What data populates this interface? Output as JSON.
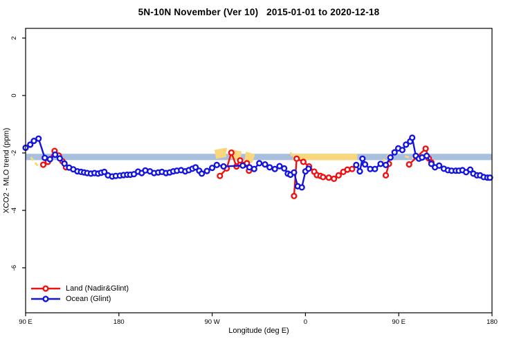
{
  "title": "5N-10N November (Ver 10)   2015-01-01 to 2020-12-18",
  "colors": {
    "land": "#EE1111",
    "ocean": "#1414DF",
    "band_blue": "#A9BFDE",
    "band_orange": "#FAD77C",
    "axis": "#000000",
    "background": "#FFFFFF"
  },
  "legend": {
    "items": [
      {
        "label": "Land (Nadir&Glint)",
        "series": "land"
      },
      {
        "label": "Ocean (Glint)",
        "series": "ocean"
      }
    ]
  },
  "chart_data": {
    "type": "line",
    "title": "5N-10N November (Ver 10)   2015-01-01 to 2020-12-18",
    "xlabel": "Longitude (deg E)",
    "ylabel": "XCO2 - MLO trend (ppm)",
    "grid": false,
    "legend_position": "bottom-left",
    "xlim": [
      90,
      540
    ],
    "ylim": [
      -7.6,
      2.35
    ],
    "x_axis_note": "longitude wraps eastward: 90E -> 180 -> 90W -> 0 -> 90E -> 180",
    "x_ticks": [
      {
        "pos": 90,
        "label": "90 E"
      },
      {
        "pos": 180,
        "label": "180"
      },
      {
        "pos": 270,
        "label": "90 W"
      },
      {
        "pos": 360,
        "label": "0"
      },
      {
        "pos": 450,
        "label": "90 E"
      },
      {
        "pos": 540,
        "label": "180"
      }
    ],
    "y_ticks": [
      {
        "pos": 2,
        "label": "2"
      },
      {
        "pos": 0,
        "label": "0"
      },
      {
        "pos": -2,
        "label": "-2"
      },
      {
        "pos": -4,
        "label": "-4"
      },
      {
        "pos": -6,
        "label": "-6"
      }
    ],
    "bands": [
      {
        "name": "reference-band-blue",
        "color_key": "band_blue",
        "x": [
          90,
          540
        ],
        "y": [
          -2.03,
          -2.25
        ]
      },
      {
        "name": "reference-band-orange",
        "color_key": "band_orange",
        "x": [
          348,
          410
        ],
        "y": [
          -2.03,
          -2.25
        ]
      }
    ],
    "dashed_overlays": [
      {
        "name": "orange-dash-1",
        "w": 3,
        "dash": "6 4",
        "points": [
          [
            95,
            -2.15
          ],
          [
            100,
            -2.38
          ],
          [
            104,
            -2.52
          ]
        ]
      },
      {
        "name": "orange-dash-2",
        "w": 13,
        "dash": "16 6",
        "points": [
          [
            273,
            -2.05
          ],
          [
            283,
            -1.98
          ],
          [
            294,
            -2.08
          ],
          [
            303,
            -2.12
          ],
          [
            310,
            -2.2
          ]
        ]
      },
      {
        "name": "orange-dash-3",
        "w": 3,
        "dash": "6 4",
        "points": [
          [
            345.5,
            -1.98
          ],
          [
            349,
            -2.25
          ]
        ]
      },
      {
        "name": "orange-dash-4",
        "w": 3,
        "dash": "6 4",
        "points": [
          [
            434,
            -2.32
          ],
          [
            440,
            -2.08
          ],
          [
            446,
            -1.86
          ]
        ]
      },
      {
        "name": "orange-dash-5",
        "w": 3,
        "dash": "6 4",
        "points": [
          [
            456,
            -2.12
          ],
          [
            464,
            -2.18
          ]
        ]
      },
      {
        "name": "orange-dash-6",
        "w": 3,
        "dash": "6 4",
        "points": [
          [
            470,
            -2.12
          ],
          [
            479,
            -2.2
          ]
        ]
      }
    ],
    "series": [
      {
        "name": "Land (Nadir&Glint)",
        "color_key": "land",
        "marker": "open-circle",
        "segments": [
          [
            [
              107,
              -2.41
            ],
            [
              111.5,
              -2.31
            ],
            [
              118,
              -1.93
            ],
            [
              122,
              -2.09
            ],
            [
              125.5,
              -2.29
            ],
            [
              129,
              -2.5
            ]
          ],
          [
            [
              277.5,
              -2.8
            ],
            [
              284,
              -2.54
            ],
            [
              288.5,
              -1.99
            ],
            [
              293.5,
              -2.47
            ],
            [
              297,
              -2.26
            ],
            [
              300.5,
              -2.42
            ],
            [
              303.5,
              -2.36
            ],
            [
              305.5,
              -2.62
            ]
          ],
          [
            [
              349,
              -3.5
            ],
            [
              351.5,
              -2.2
            ],
            [
              358,
              -2.31
            ],
            [
              363.5,
              -2.47
            ],
            [
              368.5,
              -2.65
            ],
            [
              371,
              -2.77
            ],
            [
              374.5,
              -2.8
            ],
            [
              377,
              -2.84
            ],
            [
              382.5,
              -2.86
            ],
            [
              387.5,
              -2.9
            ],
            [
              392,
              -2.78
            ],
            [
              396.5,
              -2.66
            ],
            [
              400.5,
              -2.58
            ],
            [
              405,
              -2.56
            ]
          ],
          [
            [
              437.5,
              -2.78
            ],
            [
              440.5,
              -2.38
            ]
          ],
          [
            [
              460,
              -2.4
            ],
            [
              476,
              -1.85
            ],
            [
              479,
              -2.19
            ],
            [
              481.5,
              -2.33
            ]
          ]
        ]
      },
      {
        "name": "Ocean (Glint)",
        "color_key": "ocean",
        "marker": "open-circle",
        "segments": [
          [
            [
              90,
              -1.82
            ],
            [
              94.5,
              -1.71
            ],
            [
              98,
              -1.58
            ],
            [
              102.5,
              -1.5
            ],
            [
              108.5,
              -2.17
            ],
            [
              113.5,
              -2.22
            ],
            [
              118.5,
              -2.06
            ],
            [
              123,
              -2.19
            ],
            [
              127.5,
              -2.37
            ],
            [
              132,
              -2.51
            ],
            [
              136,
              -2.57
            ],
            [
              140,
              -2.64
            ],
            [
              143.5,
              -2.66
            ],
            [
              146.5,
              -2.68
            ],
            [
              149.5,
              -2.7
            ],
            [
              153,
              -2.72
            ],
            [
              156.5,
              -2.7
            ],
            [
              160,
              -2.72
            ],
            [
              163,
              -2.69
            ],
            [
              166,
              -2.66
            ],
            [
              169.5,
              -2.78
            ],
            [
              173.5,
              -2.82
            ],
            [
              177,
              -2.8
            ],
            [
              181,
              -2.79
            ],
            [
              184.5,
              -2.77
            ],
            [
              188,
              -2.76
            ],
            [
              191,
              -2.76
            ],
            [
              194.5,
              -2.74
            ],
            [
              198.5,
              -2.65
            ],
            [
              202,
              -2.7
            ],
            [
              205.5,
              -2.61
            ],
            [
              210,
              -2.64
            ],
            [
              214,
              -2.7
            ],
            [
              218,
              -2.68
            ],
            [
              221.5,
              -2.66
            ],
            [
              225.5,
              -2.7
            ],
            [
              229,
              -2.68
            ],
            [
              232.5,
              -2.64
            ],
            [
              236,
              -2.62
            ],
            [
              240,
              -2.6
            ],
            [
              244,
              -2.64
            ],
            [
              247.5,
              -2.6
            ],
            [
              251,
              -2.55
            ],
            [
              254,
              -2.5
            ],
            [
              257.5,
              -2.62
            ],
            [
              260,
              -2.72
            ],
            [
              265,
              -2.63
            ],
            [
              270,
              -2.52
            ],
            [
              274.5,
              -2.42
            ],
            [
              281,
              -2.47
            ],
            [
              299.5,
              -2.44
            ],
            [
              306,
              -2.5
            ],
            [
              310.5,
              -2.56
            ],
            [
              315.5,
              -2.36
            ],
            [
              321,
              -2.4
            ],
            [
              325.5,
              -2.5
            ],
            [
              330.5,
              -2.56
            ],
            [
              335,
              -2.46
            ],
            [
              339.5,
              -2.54
            ],
            [
              343,
              -2.72
            ],
            [
              345.5,
              -2.76
            ],
            [
              349,
              -2.68
            ],
            [
              352.5,
              -3.16
            ],
            [
              356.5,
              -3.2
            ],
            [
              360,
              -2.64
            ],
            [
              363,
              -2.55
            ]
          ],
          [
            [
              409,
              -2.42
            ],
            [
              412.5,
              -2.64
            ],
            [
              415,
              -2.2
            ],
            [
              417.5,
              -2.4
            ],
            [
              422.5,
              -2.56
            ],
            [
              427,
              -2.56
            ],
            [
              432.5,
              -2.38
            ],
            [
              437.5,
              -2.42
            ],
            [
              442,
              -2.16
            ],
            [
              446,
              -1.98
            ],
            [
              449.5,
              -1.84
            ],
            [
              453.5,
              -1.9
            ],
            [
              457,
              -1.71
            ],
            [
              461,
              -1.6
            ],
            [
              463,
              -1.47
            ],
            [
              466.5,
              -2.1
            ],
            [
              469.5,
              -2.2
            ],
            [
              472.5,
              -2.16
            ],
            [
              477,
              -2.1
            ],
            [
              481.5,
              -2.38
            ],
            [
              485,
              -2.5
            ],
            [
              489,
              -2.44
            ],
            [
              493.5,
              -2.55
            ],
            [
              497.5,
              -2.6
            ],
            [
              501,
              -2.62
            ],
            [
              505,
              -2.62
            ],
            [
              508,
              -2.62
            ],
            [
              511.5,
              -2.6
            ],
            [
              515,
              -2.67
            ],
            [
              519,
              -2.58
            ],
            [
              522,
              -2.72
            ],
            [
              525.5,
              -2.78
            ],
            [
              528.5,
              -2.78
            ],
            [
              532,
              -2.84
            ],
            [
              535.5,
              -2.86
            ],
            [
              538,
              -2.86
            ]
          ]
        ]
      }
    ]
  }
}
